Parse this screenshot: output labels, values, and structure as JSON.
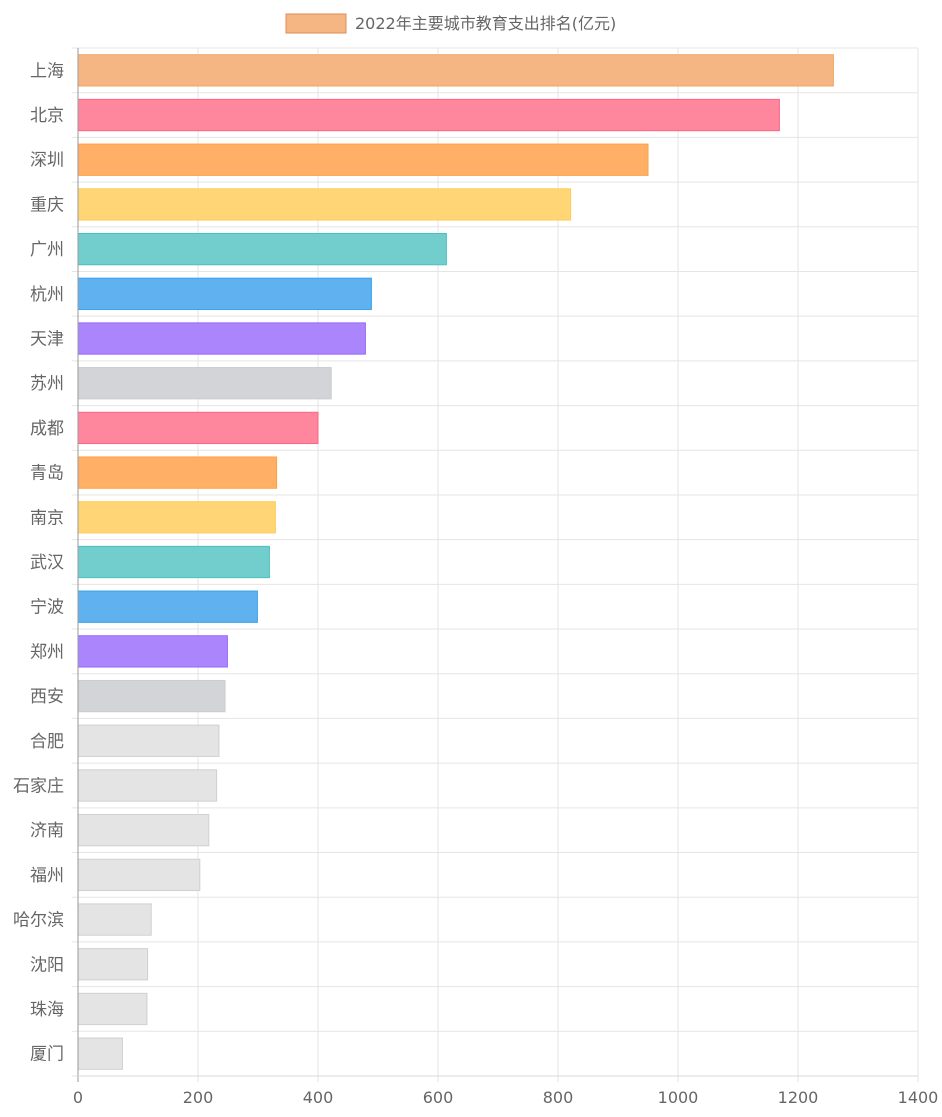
{
  "chart_data": {
    "type": "bar",
    "orientation": "horizontal",
    "categories": [
      "上海",
      "北京",
      "深圳",
      "重庆",
      "广州",
      "杭州",
      "天津",
      "苏州",
      "成都",
      "青岛",
      "南京",
      "武汉",
      "宁波",
      "郑州",
      "西安",
      "合肥",
      "石家庄",
      "济南",
      "福州",
      "哈尔滨",
      "沈阳",
      "珠海",
      "厦门"
    ],
    "series": [
      {
        "name": "2022年主要城市教育支出排名(亿元)",
        "values": [
          1259,
          1169,
          950,
          821,
          614,
          489,
          479,
          422,
          400,
          331,
          329,
          319,
          299,
          249,
          245,
          235,
          231,
          218,
          203,
          122,
          116,
          115,
          74
        ]
      }
    ],
    "bar_colors": [
      "#f5b683",
      "#ff879d",
      "#ffb066",
      "#ffd575",
      "#72cdcd",
      "#5fb2ef",
      "#ab85fb",
      "#d3d4d8",
      "#ff879d",
      "#ffb066",
      "#ffd575",
      "#72cdcd",
      "#5fb2ef",
      "#ab85fb",
      "#d3d4d8",
      "#e4e4e4",
      "#e4e4e4",
      "#e4e4e4",
      "#e4e4e4",
      "#e4e4e4",
      "#e4e4e4",
      "#e4e4e4",
      "#e4e4e4"
    ],
    "bar_border_colors": [
      "#f0a463",
      "#ff6385",
      "#ff9f40",
      "#ffcd56",
      "#4bc0c0",
      "#36a2eb",
      "#9966ff",
      "#c9cbcf",
      "#ff6385",
      "#ff9f40",
      "#ffcd56",
      "#4bc0c0",
      "#36a2eb",
      "#9966ff",
      "#c9cbcf",
      "#d0d0d0",
      "#d0d0d0",
      "#d0d0d0",
      "#d0d0d0",
      "#d0d0d0",
      "#d0d0d0",
      "#d0d0d0",
      "#d0d0d0"
    ],
    "legend_color": "#f5b683",
    "legend_border_color": "#e08b57",
    "xlim": [
      0,
      1400
    ],
    "x_ticks": [
      0,
      200,
      400,
      600,
      800,
      1000,
      1200,
      1400
    ],
    "grid": true,
    "legend_position": "top"
  }
}
